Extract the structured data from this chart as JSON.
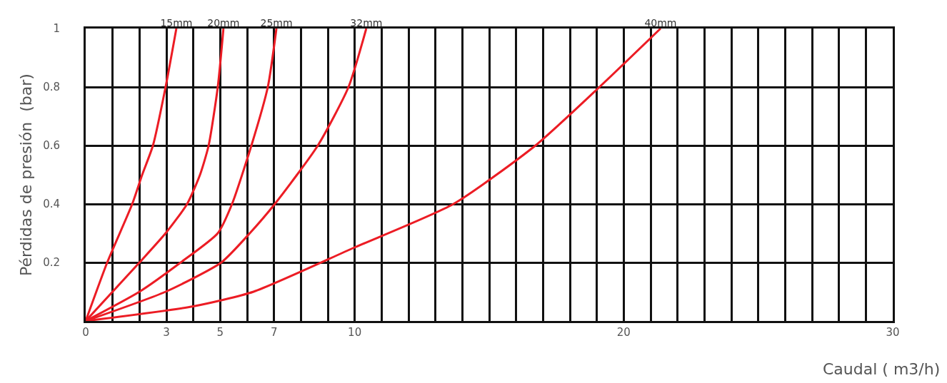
{
  "chart_data": {
    "type": "line",
    "xlabel": "Caudal ( m3/h)",
    "ylabel": "Pérdidas de presión  (bar)",
    "xlim": [
      0,
      30
    ],
    "ylim": [
      0,
      1
    ],
    "xticks": [
      0,
      {
        "value": 1,
        "label": null
      },
      {
        "value": 2,
        "label": null
      },
      3,
      {
        "value": 4,
        "label": null
      },
      5,
      {
        "value": 6,
        "label": null
      },
      7,
      {
        "value": 8,
        "label": null
      },
      {
        "value": 9,
        "label": null
      },
      10,
      {
        "value": 11,
        "label": null
      },
      {
        "value": 12,
        "label": null
      },
      {
        "value": 13,
        "label": null
      },
      {
        "value": 14,
        "label": null
      },
      {
        "value": 15,
        "label": null
      },
      {
        "value": 16,
        "label": null
      },
      {
        "value": 17,
        "label": null
      },
      {
        "value": 18,
        "label": null
      },
      {
        "value": 19,
        "label": null
      },
      20,
      {
        "value": 21,
        "label": null
      },
      {
        "value": 22,
        "label": null
      },
      {
        "value": 23,
        "label": null
      },
      {
        "value": 24,
        "label": null
      },
      {
        "value": 25,
        "label": null
      },
      {
        "value": 26,
        "label": null
      },
      {
        "value": 27,
        "label": null
      },
      {
        "value": 28,
        "label": null
      },
      {
        "value": 29,
        "label": null
      },
      30
    ],
    "yticks": [
      {
        "value": 0,
        "label": null
      },
      0.2,
      0.4,
      0.6,
      0.8,
      1
    ],
    "grid": true,
    "legend": false,
    "marker": "none",
    "line_style": "solid",
    "series": [
      {
        "name": "15mm",
        "color": "#ec1c24",
        "x": [
          0,
          0.8,
          1.73,
          2.1,
          2.5,
          2.97,
          3.37
        ],
        "values": [
          0,
          0.2,
          0.4,
          0.5,
          0.6,
          0.8,
          1
        ]
      },
      {
        "name": "20mm",
        "color": "#ec1c24",
        "x": [
          0,
          2.0,
          2.97,
          3.77,
          4.25,
          4.57,
          4.91,
          5.12
        ],
        "values": [
          0,
          0.2,
          0.3,
          0.4,
          0.5,
          0.6,
          0.8,
          1
        ]
      },
      {
        "name": "25mm",
        "color": "#ec1c24",
        "x": [
          0,
          2.0,
          3.53,
          4.91,
          5.44,
          6.16,
          6.77,
          7.09
        ],
        "values": [
          0,
          0.1,
          0.2,
          0.3,
          0.4,
          0.6,
          0.8,
          1
        ]
      },
      {
        "name": "32mm",
        "color": "#ec1c24",
        "x": [
          0,
          2.97,
          5.04,
          6.1,
          7.03,
          8.63,
          9.77,
          10.43
        ],
        "values": [
          0,
          0.1,
          0.2,
          0.3,
          0.4,
          0.6,
          0.8,
          1
        ]
      },
      {
        "name": "40mm",
        "color": "#ec1c24",
        "x": [
          0,
          4.0,
          6.24,
          9.96,
          13.67,
          16.72,
          19.1,
          21.37
        ],
        "values": [
          0,
          0.05,
          0.1,
          0.25,
          0.4,
          0.6,
          0.8,
          1
        ]
      }
    ]
  }
}
